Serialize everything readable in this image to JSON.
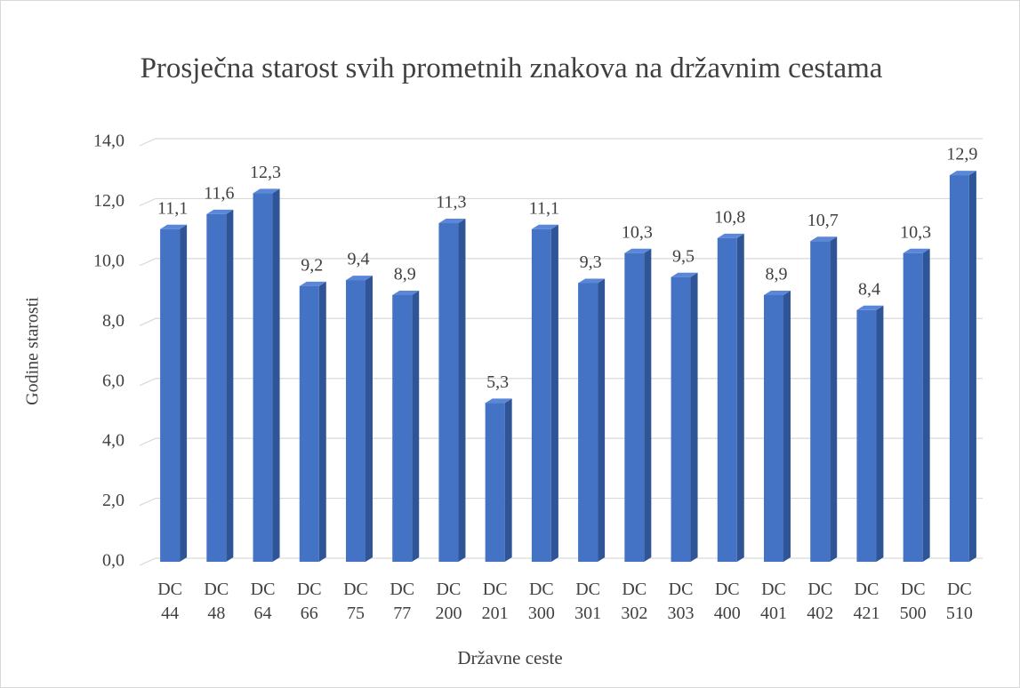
{
  "chart_data": {
    "type": "bar3d",
    "title": "Prosječna starost svih prometnih znakova na državnim cestama",
    "x_label": "Državne ceste",
    "y_label": "Godine starosti",
    "categories": [
      "DC 44",
      "DC 48",
      "DC 64",
      "DC 66",
      "DC 75",
      "DC 77",
      "DC 200",
      "DC 201",
      "DC 300",
      "DC 301",
      "DC 302",
      "DC 303",
      "DC 400",
      "DC 401",
      "DC 402",
      "DC 421",
      "DC 500",
      "DC 510"
    ],
    "values": [
      11.1,
      11.6,
      12.3,
      9.2,
      9.4,
      8.9,
      11.3,
      5.3,
      11.1,
      9.3,
      10.3,
      9.5,
      10.8,
      8.9,
      10.7,
      8.4,
      10.3,
      12.9
    ],
    "value_labels": [
      "11,1",
      "11,6",
      "12,3",
      "9,2",
      "9,4",
      "8,9",
      "11,3",
      "5,3",
      "11,1",
      "9,3",
      "10,3",
      "9,5",
      "10,8",
      "8,9",
      "10,7",
      "8,4",
      "10,3",
      "12,9"
    ],
    "color": "#4472c4",
    "ylim": [
      0,
      14
    ],
    "yticks": [
      {
        "value": 0,
        "label": "0,0"
      },
      {
        "value": 2,
        "label": "2,0"
      },
      {
        "value": 4,
        "label": "4,0"
      },
      {
        "value": 6,
        "label": "6,0"
      },
      {
        "value": 8,
        "label": "8,0"
      },
      {
        "value": 10,
        "label": "10,0"
      },
      {
        "value": 12,
        "label": "12,0"
      },
      {
        "value": 14,
        "label": "14,0"
      }
    ],
    "grid": true
  }
}
